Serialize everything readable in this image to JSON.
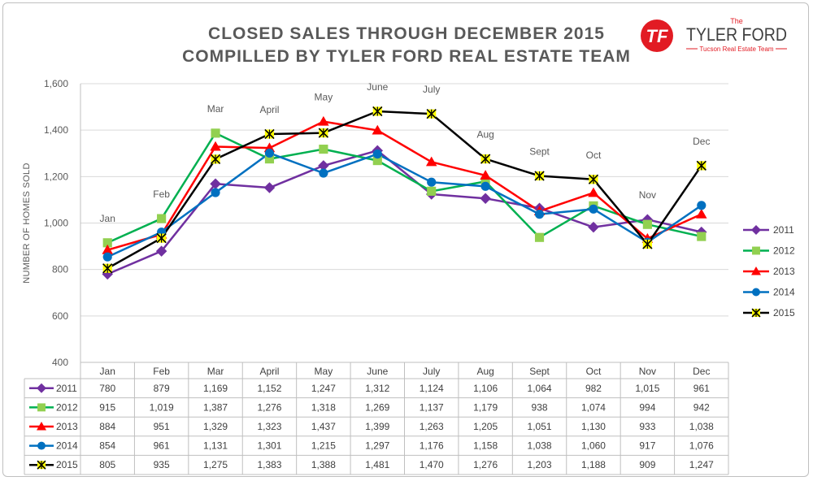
{
  "title_line1": "CLOSED SALES THROUGH DECEMBER 2015",
  "title_line2": "COMPILLED BY TYLER FORD REAL ESTATE TEAM",
  "logo": {
    "top_text": "The",
    "name": "TYLER FORD",
    "subtitle": "Tucson Real Estate Team",
    "monogram": "TF",
    "brand_color": "#e21b23"
  },
  "chart_data": {
    "type": "line",
    "title": "CLOSED SALES THROUGH DECEMBER 2015",
    "ylabel": "NUMBER OF HOMES SOLD",
    "ylim": [
      400,
      1600
    ],
    "yticks": [
      "400",
      "600",
      "800",
      "1,000",
      "1,200",
      "1,400",
      "1,600"
    ],
    "ytick_values": [
      400,
      600,
      800,
      1000,
      1200,
      1400,
      1600
    ],
    "categories": [
      "Jan",
      "Feb",
      "Mar",
      "April",
      "May",
      "June",
      "July",
      "Aug",
      "Sept",
      "Oct",
      "Nov",
      "Dec"
    ],
    "grid": true,
    "legend_position": "right",
    "series": [
      {
        "name": "2011",
        "color": "#7030a0",
        "marker": "diamond",
        "values": [
          780,
          879,
          1169,
          1152,
          1247,
          1312,
          1124,
          1106,
          1064,
          982,
          1015,
          961
        ],
        "labels": [
          "780",
          "879",
          "1,169",
          "1,152",
          "1,247",
          "1,312",
          "1,124",
          "1,106",
          "1,064",
          "982",
          "1,015",
          "961"
        ]
      },
      {
        "name": "2012",
        "color": "#00b050",
        "marker": "square",
        "marker_color": "#92d050",
        "values": [
          915,
          1019,
          1387,
          1276,
          1318,
          1269,
          1137,
          1179,
          938,
          1074,
          994,
          942
        ],
        "labels": [
          "915",
          "1,019",
          "1,387",
          "1,276",
          "1,318",
          "1,269",
          "1,137",
          "1,179",
          "938",
          "1,074",
          "994",
          "942"
        ]
      },
      {
        "name": "2013",
        "color": "#ff0000",
        "marker": "triangle",
        "values": [
          884,
          951,
          1329,
          1323,
          1437,
          1399,
          1263,
          1205,
          1051,
          1130,
          933,
          1038
        ],
        "labels": [
          "884",
          "951",
          "1,329",
          "1,323",
          "1,437",
          "1,399",
          "1,263",
          "1,205",
          "1,051",
          "1,130",
          "933",
          "1,038"
        ]
      },
      {
        "name": "2014",
        "color": "#0070c0",
        "marker": "circle",
        "values": [
          854,
          961,
          1131,
          1301,
          1215,
          1297,
          1176,
          1158,
          1038,
          1060,
          917,
          1076
        ],
        "labels": [
          "854",
          "961",
          "1,131",
          "1,301",
          "1,215",
          "1,297",
          "1,176",
          "1,158",
          "1,038",
          "1,060",
          "917",
          "1,076"
        ]
      },
      {
        "name": "2015",
        "color": "#000000",
        "marker": "star",
        "marker_color": "#ffff00",
        "values": [
          805,
          935,
          1275,
          1383,
          1388,
          1481,
          1470,
          1276,
          1203,
          1188,
          909,
          1247
        ],
        "labels": [
          "805",
          "935",
          "1,275",
          "1,383",
          "1,388",
          "1,481",
          "1,470",
          "1,276",
          "1,203",
          "1,188",
          "909",
          "1,247"
        ]
      }
    ],
    "annotation_series": "2015"
  }
}
